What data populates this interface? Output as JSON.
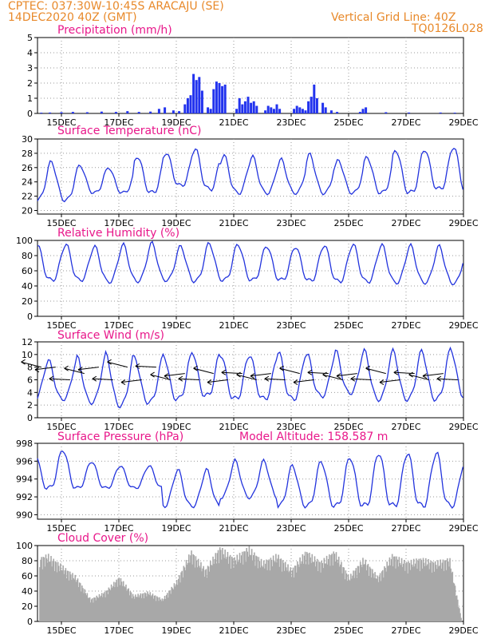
{
  "header": {
    "line1": "CPTEC:   037:30W-10:45S   ARACAJU (SE)",
    "line2": "14DEC2020 40Z (GMT)",
    "grid_note": "Vertical Grid Line: 40Z",
    "model_id": "TQ0126L028"
  },
  "colors": {
    "series_line": "#2233dd",
    "bar_fill": "#2233ee",
    "cloud_fill": "#a8a8a8",
    "title": "#e8178a",
    "header": "#e8892a"
  },
  "x_axis": {
    "start_day": 14.167,
    "end_day": 29,
    "ticks": [
      {
        "label": "15DEC",
        "day": 15
      },
      {
        "label": "17DEC",
        "day": 17
      },
      {
        "label": "19DEC",
        "day": 19
      },
      {
        "label": "21DEC",
        "day": 21
      },
      {
        "label": "23DEC",
        "day": 23
      },
      {
        "label": "25DEC",
        "day": 25
      },
      {
        "label": "27DEC",
        "day": 27
      },
      {
        "label": "29DEC",
        "day": 29
      }
    ]
  },
  "chart_data": [
    {
      "type": "bar",
      "title": "Precipitation (mm/h)",
      "ylim": [
        0,
        5
      ],
      "yticks": [
        0,
        1,
        2,
        3,
        4,
        5
      ],
      "series": [
        {
          "x": [
            14.3,
            14.6,
            15.0,
            15.4,
            15.9,
            16.4,
            16.9,
            17.3,
            17.7,
            18.1,
            18.4,
            18.6,
            18.9,
            19.1,
            19.3,
            19.4,
            19.5,
            19.6,
            19.7,
            19.8,
            19.9,
            20.1,
            20.2,
            20.3,
            20.4,
            20.5,
            20.6,
            20.7,
            21.1,
            21.2,
            21.3,
            21.4,
            21.5,
            21.6,
            21.7,
            21.8,
            22.1,
            22.2,
            22.3,
            22.4,
            22.5,
            22.6,
            23.1,
            23.2,
            23.3,
            23.4,
            23.5,
            23.6,
            23.7,
            23.8,
            23.9,
            24.1,
            24.2,
            24.4,
            24.6,
            25.4,
            25.5,
            25.6,
            26.3,
            27.1,
            28.2,
            28.7
          ],
          "values": [
            0.05,
            0.06,
            0.08,
            0.1,
            0.08,
            0.12,
            0.1,
            0.15,
            0.1,
            0.12,
            0.3,
            0.4,
            0.2,
            0.15,
            0.6,
            1.0,
            1.2,
            2.6,
            2.2,
            2.4,
            1.5,
            0.4,
            0.3,
            1.6,
            2.1,
            2.0,
            1.8,
            1.9,
            0.3,
            1.0,
            0.6,
            0.8,
            1.1,
            0.7,
            0.8,
            0.5,
            0.2,
            0.5,
            0.4,
            0.3,
            0.6,
            0.3,
            0.3,
            0.5,
            0.4,
            0.3,
            0.2,
            0.8,
            1.1,
            1.9,
            1.0,
            0.7,
            0.4,
            0.2,
            0.1,
            0.1,
            0.3,
            0.4,
            0.08,
            0.06,
            0.06,
            0.05
          ]
        }
      ],
      "grid": true
    },
    {
      "type": "line",
      "title": "Surface Temperature (nC)",
      "ylim": [
        19.5,
        30
      ],
      "yticks": [
        20,
        22,
        24,
        26,
        28,
        30
      ],
      "pattern": {
        "start_day": 14.167,
        "step_days": 0.25,
        "min": [
          21.5,
          22.5,
          22.5,
          22.5,
          23.5,
          23,
          22.5,
          22.5,
          22.5,
          22.5,
          22.5,
          22.5,
          22.5,
          23,
          22.5
        ],
        "max": [
          26.8,
          26.3,
          26.0,
          27.6,
          28.1,
          28.7,
          27.7,
          27.5,
          27.1,
          27.8,
          27.0,
          27.5,
          28.5,
          28.6,
          29.0
        ]
      },
      "series": [
        {
          "name": "",
          "values": []
        }
      ],
      "grid": true
    },
    {
      "type": "line",
      "title": "Relative Humidity (%)",
      "ylim": [
        0,
        100
      ],
      "yticks": [
        0,
        20,
        40,
        60,
        80,
        100
      ],
      "pattern": {
        "min": [
          48,
          48,
          46,
          47,
          48,
          47,
          48,
          48,
          48,
          47,
          46,
          46,
          45,
          45,
          44
        ],
        "max": [
          95,
          92,
          94,
          96,
          92,
          96,
          95,
          93,
          92,
          94,
          95,
          94,
          93,
          92,
          90
        ]
      },
      "series": [
        {
          "name": "",
          "values": []
        }
      ],
      "grid": true
    },
    {
      "type": "line",
      "title": "Surface Wind (m/s)",
      "ylim": [
        0,
        12
      ],
      "yticks": [
        0,
        2,
        4,
        6,
        8,
        10,
        12
      ],
      "pattern": {
        "min": [
          3,
          2.5,
          2,
          2.5,
          3,
          3.5,
          3,
          3,
          3,
          3.5,
          4,
          3,
          3,
          3,
          3.5
        ],
        "max": [
          9,
          9.5,
          10,
          9.5,
          10,
          10.5,
          10,
          10,
          10.5,
          10,
          10.5,
          10.5,
          10.5,
          10.5,
          11
        ]
      },
      "wind_arrows": {
        "days": [
          14.3,
          14.8,
          15.3,
          15.8,
          16.3,
          16.8,
          17.3,
          17.8,
          18.3,
          18.8,
          19.3,
          19.8,
          20.3,
          20.8,
          21.3,
          21.8,
          22.3,
          22.8,
          23.3,
          23.8,
          24.3,
          24.8,
          25.3,
          25.8,
          26.3,
          26.8,
          27.3,
          27.8,
          28.3,
          28.8
        ],
        "speeds": [
          8,
          8,
          6,
          7,
          8,
          6,
          8,
          6,
          8,
          6,
          7,
          6,
          7,
          6,
          7,
          6,
          7,
          6,
          7,
          6,
          7,
          6,
          7,
          6,
          7,
          6,
          7,
          6,
          7,
          6
        ]
      },
      "series": [
        {
          "name": "",
          "values": []
        }
      ],
      "grid": true
    },
    {
      "type": "line",
      "title": "Surface Pressure (hPa)",
      "annotation": "Model Altitude: 158.587 m",
      "ylim": [
        989.5,
        998
      ],
      "yticks": [
        990,
        992,
        994,
        996,
        998
      ],
      "pattern": {
        "min": [
          993,
          993,
          993,
          993,
          991,
          991,
          992,
          992,
          991,
          991,
          991,
          991,
          991,
          991,
          991
        ],
        "max": [
          997.3,
          996,
          995.5,
          995.5,
          995,
          995,
          996,
          996,
          995.5,
          996,
          996.5,
          997,
          997,
          997,
          996
        ]
      },
      "series": [
        {
          "name": "",
          "values": []
        }
      ],
      "grid": true
    },
    {
      "type": "area",
      "title": "Cloud Cover (%)",
      "ylim": [
        0,
        100
      ],
      "yticks": [
        0,
        20,
        40,
        60,
        80,
        100
      ],
      "profile": {
        "days": [
          14.2,
          14.5,
          15.0,
          15.5,
          16.0,
          16.5,
          17.0,
          17.5,
          18.0,
          18.5,
          19.0,
          19.5,
          20.0,
          20.5,
          21.0,
          21.5,
          22.0,
          22.5,
          23.0,
          23.5,
          24.0,
          24.5,
          25.0,
          25.5,
          26.0,
          26.5,
          27.0,
          27.5,
          28.0,
          28.5,
          28.9
        ],
        "values": [
          85,
          90,
          75,
          60,
          30,
          40,
          60,
          35,
          40,
          30,
          55,
          95,
          70,
          100,
          85,
          100,
          80,
          90,
          70,
          95,
          80,
          95,
          60,
          85,
          60,
          90,
          80,
          85,
          80,
          85,
          5
        ]
      },
      "series": [
        {
          "name": "",
          "values": []
        }
      ],
      "grid": true
    }
  ]
}
